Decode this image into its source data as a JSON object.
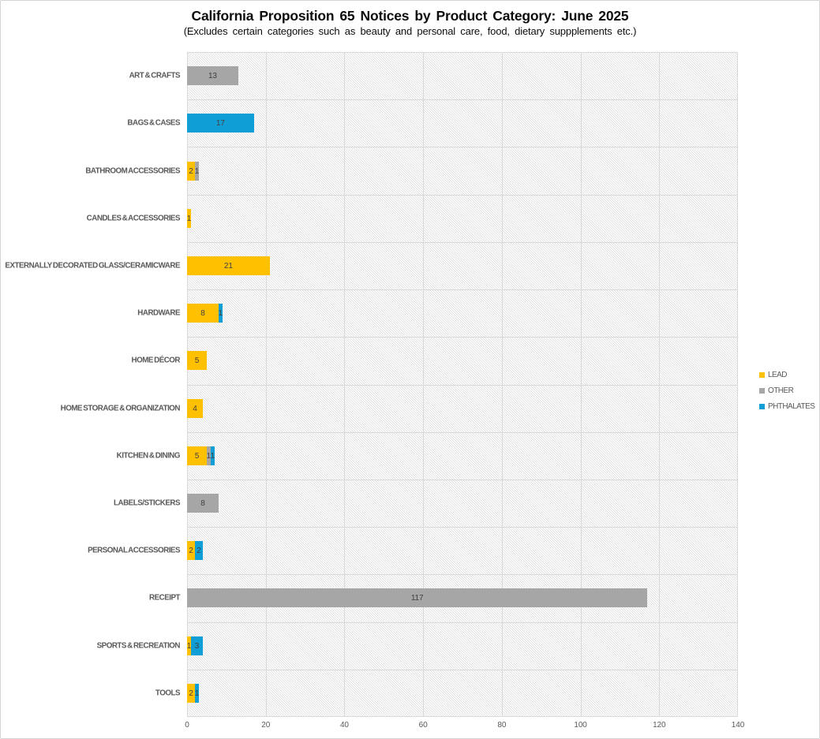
{
  "title": "California Proposition 65 Notices by Product Category: June 2025",
  "subtitle": "(Excludes certain categories such as beauty and personal care, food, dietary suppplements etc.)",
  "chart_data": {
    "type": "bar",
    "orientation": "horizontal",
    "stacked": true,
    "title": "California Proposition 65 Notices by Product Category: June 2025",
    "subtitle": "(Excludes certain categories such as beauty and personal care, food, dietary suppplements etc.)",
    "categories": [
      "ART & CRAFTS",
      "BAGS & CASES",
      "BATHROOM ACCESSORIES",
      "CANDLES & ACCESSORIES",
      "EXTERNALLY DECORATED GLASS/CERAMICWARE",
      "HARDWARE",
      "HOME DÉCOR",
      "HOME STORAGE & ORGANIZATION",
      "KITCHEN & DINING",
      "LABELS/STICKERS",
      "PERSONAL ACCESSORIES",
      "RECEIPT",
      "SPORTS & RECREATION",
      "TOOLS"
    ],
    "series": [
      {
        "name": "LEAD",
        "color": "#FFC000",
        "values": [
          0,
          0,
          2,
          1,
          21,
          8,
          5,
          4,
          5,
          0,
          2,
          0,
          1,
          2
        ]
      },
      {
        "name": "OTHER",
        "color": "#A6A6A6",
        "values": [
          13,
          0,
          1,
          0,
          0,
          0,
          0,
          0,
          1,
          8,
          0,
          117,
          0,
          0
        ]
      },
      {
        "name": "PHTHALATES",
        "color": "#0F9ED5",
        "values": [
          0,
          17,
          0,
          0,
          0,
          1,
          0,
          0,
          1,
          0,
          2,
          0,
          3,
          1
        ]
      }
    ],
    "xlabel": "",
    "ylabel": "",
    "xlim": [
      0,
      140
    ],
    "xticks": [
      0,
      20,
      40,
      60,
      80,
      100,
      120,
      140
    ],
    "grid": true,
    "legend_position": "right",
    "plot_background": "light-downward-diagonal-hatch"
  },
  "legend": {
    "items": [
      {
        "label": "LEAD",
        "color": "#FFC000"
      },
      {
        "label": "OTHER",
        "color": "#A6A6A6"
      },
      {
        "label": "PHTHALATES",
        "color": "#0F9ED5"
      }
    ]
  },
  "colors": {
    "lead": "#FFC000",
    "other": "#A6A6A6",
    "phthalates": "#0F9ED5",
    "gridline": "#D9D9D9",
    "axis_text": "#595959",
    "data_label": "#404040",
    "hatch_line": "#DCDCDC",
    "chart_border": "#D4D4D4"
  }
}
